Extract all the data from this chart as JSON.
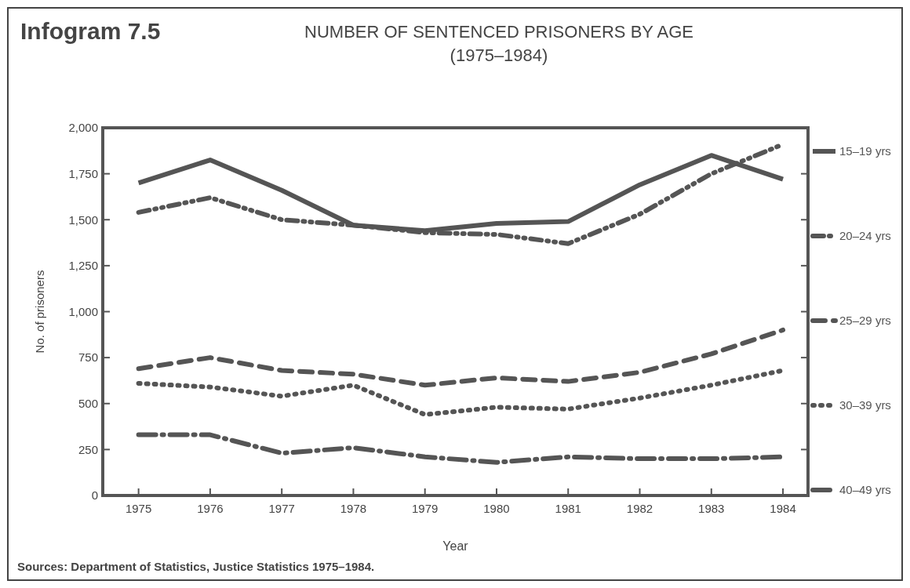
{
  "chart_data": {
    "type": "line",
    "title": "Infogram 7.5",
    "subtitle": "NUMBER OF SENTENCED PRISONERS BY AGE\n(1975–1984)",
    "xlabel": "Year",
    "ylabel": "No. of prisoners",
    "x": [
      1975,
      1976,
      1977,
      1978,
      1979,
      1980,
      1981,
      1982,
      1983,
      1984
    ],
    "xlim": [
      1974.5,
      1984.35
    ],
    "xticks": [
      1975,
      1976,
      1977,
      1978,
      1979,
      1980,
      1981,
      1982,
      1983,
      1984
    ],
    "ylim": [
      0,
      2000
    ],
    "yticks": [
      0,
      250,
      500,
      750,
      {
        "value": 1000,
        "label": "1,000"
      },
      {
        "value": 1250,
        "label": "1,250"
      },
      {
        "value": 1500,
        "label": "1,500"
      },
      {
        "value": 1750,
        "label": "1,750"
      },
      {
        "value": 2000,
        "label": "2,000"
      }
    ],
    "series": [
      {
        "name": "15–19 yrs",
        "color": "#555555",
        "line_style": "solid",
        "values": [
          1700,
          1825,
          1660,
          1470,
          1440,
          1480,
          1490,
          1690,
          1850,
          1720
        ]
      },
      {
        "name": "20–24 yrs",
        "color": "#555555",
        "line_style": "dashdotdot",
        "values": [
          1540,
          1620,
          1500,
          1470,
          1430,
          1420,
          1370,
          1530,
          1750,
          1910
        ]
      },
      {
        "name": "25–29 yrs",
        "color": "#555555",
        "line_style": "dashed",
        "values": [
          690,
          750,
          680,
          660,
          600,
          640,
          620,
          670,
          770,
          900
        ]
      },
      {
        "name": "30–39 yrs",
        "color": "#555555",
        "line_style": "dotted",
        "values": [
          610,
          590,
          540,
          600,
          440,
          480,
          470,
          530,
          600,
          680
        ]
      },
      {
        "name": "40–49 yrs",
        "color": "#555555",
        "line_style": "dashdot",
        "values": [
          330,
          330,
          230,
          260,
          210,
          180,
          210,
          200,
          200,
          210
        ]
      }
    ],
    "legend": "right",
    "grid": false,
    "annotations": [
      "Sources: Department of Statistics, Justice Statistics 1975–1984."
    ]
  }
}
